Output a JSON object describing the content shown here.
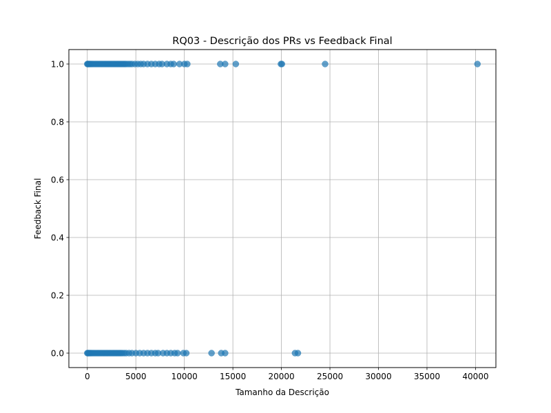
{
  "chart_data": {
    "type": "scatter",
    "title": "RQ03 - Descrição dos PRs vs Feedback Final",
    "xlabel": "Tamanho da Descrição",
    "ylabel": "Feedback Final",
    "xlim": [
      -1900,
      42100
    ],
    "ylim": [
      -0.05,
      1.05
    ],
    "xticks": [
      0,
      5000,
      10000,
      15000,
      20000,
      25000,
      30000,
      35000,
      40000
    ],
    "xtick_labels": [
      "0",
      "5000",
      "10000",
      "15000",
      "20000",
      "25000",
      "30000",
      "35000",
      "40000"
    ],
    "yticks": [
      0.0,
      0.2,
      0.4,
      0.6,
      0.8,
      1.0
    ],
    "ytick_labels": [
      "0.0",
      "0.2",
      "0.4",
      "0.6",
      "0.8",
      "1.0"
    ],
    "grid": true,
    "marker_color": "#1f77b4",
    "marker_alpha": 0.7,
    "series": [
      {
        "values": [
          {
            "x": 0,
            "y": 1
          },
          {
            "x": 50,
            "y": 1
          },
          {
            "x": 120,
            "y": 1
          },
          {
            "x": 200,
            "y": 1
          },
          {
            "x": 300,
            "y": 1
          },
          {
            "x": 420,
            "y": 1
          },
          {
            "x": 550,
            "y": 1
          },
          {
            "x": 700,
            "y": 1
          },
          {
            "x": 850,
            "y": 1
          },
          {
            "x": 1000,
            "y": 1
          },
          {
            "x": 1150,
            "y": 1
          },
          {
            "x": 1300,
            "y": 1
          },
          {
            "x": 1450,
            "y": 1
          },
          {
            "x": 1600,
            "y": 1
          },
          {
            "x": 1750,
            "y": 1
          },
          {
            "x": 1900,
            "y": 1
          },
          {
            "x": 2050,
            "y": 1
          },
          {
            "x": 2200,
            "y": 1
          },
          {
            "x": 2350,
            "y": 1
          },
          {
            "x": 2500,
            "y": 1
          },
          {
            "x": 2650,
            "y": 1
          },
          {
            "x": 2800,
            "y": 1
          },
          {
            "x": 2950,
            "y": 1
          },
          {
            "x": 3100,
            "y": 1
          },
          {
            "x": 3250,
            "y": 1
          },
          {
            "x": 3400,
            "y": 1
          },
          {
            "x": 3550,
            "y": 1
          },
          {
            "x": 3700,
            "y": 1
          },
          {
            "x": 3850,
            "y": 1
          },
          {
            "x": 4000,
            "y": 1
          },
          {
            "x": 4200,
            "y": 1
          },
          {
            "x": 4400,
            "y": 1
          },
          {
            "x": 4600,
            "y": 1
          },
          {
            "x": 4900,
            "y": 1
          },
          {
            "x": 5200,
            "y": 1
          },
          {
            "x": 5500,
            "y": 1
          },
          {
            "x": 5800,
            "y": 1
          },
          {
            "x": 6200,
            "y": 1
          },
          {
            "x": 6600,
            "y": 1
          },
          {
            "x": 7000,
            "y": 1
          },
          {
            "x": 7400,
            "y": 1
          },
          {
            "x": 7700,
            "y": 1
          },
          {
            "x": 8200,
            "y": 1
          },
          {
            "x": 8600,
            "y": 1
          },
          {
            "x": 8900,
            "y": 1
          },
          {
            "x": 9500,
            "y": 1
          },
          {
            "x": 10000,
            "y": 1
          },
          {
            "x": 10300,
            "y": 1
          },
          {
            "x": 13700,
            "y": 1
          },
          {
            "x": 14200,
            "y": 1
          },
          {
            "x": 15300,
            "y": 1
          },
          {
            "x": 19950,
            "y": 1
          },
          {
            "x": 20050,
            "y": 1
          },
          {
            "x": 24500,
            "y": 1
          },
          {
            "x": 40200,
            "y": 1
          },
          {
            "x": 0,
            "y": 0
          },
          {
            "x": 60,
            "y": 0
          },
          {
            "x": 140,
            "y": 0
          },
          {
            "x": 230,
            "y": 0
          },
          {
            "x": 340,
            "y": 0
          },
          {
            "x": 460,
            "y": 0
          },
          {
            "x": 600,
            "y": 0
          },
          {
            "x": 750,
            "y": 0
          },
          {
            "x": 900,
            "y": 0
          },
          {
            "x": 1050,
            "y": 0
          },
          {
            "x": 1200,
            "y": 0
          },
          {
            "x": 1350,
            "y": 0
          },
          {
            "x": 1500,
            "y": 0
          },
          {
            "x": 1650,
            "y": 0
          },
          {
            "x": 1800,
            "y": 0
          },
          {
            "x": 1950,
            "y": 0
          },
          {
            "x": 2100,
            "y": 0
          },
          {
            "x": 2250,
            "y": 0
          },
          {
            "x": 2400,
            "y": 0
          },
          {
            "x": 2550,
            "y": 0
          },
          {
            "x": 2700,
            "y": 0
          },
          {
            "x": 2850,
            "y": 0
          },
          {
            "x": 3000,
            "y": 0
          },
          {
            "x": 3150,
            "y": 0
          },
          {
            "x": 3300,
            "y": 0
          },
          {
            "x": 3450,
            "y": 0
          },
          {
            "x": 3600,
            "y": 0
          },
          {
            "x": 3800,
            "y": 0
          },
          {
            "x": 4000,
            "y": 0
          },
          {
            "x": 4300,
            "y": 0
          },
          {
            "x": 4600,
            "y": 0
          },
          {
            "x": 5000,
            "y": 0
          },
          {
            "x": 5400,
            "y": 0
          },
          {
            "x": 5800,
            "y": 0
          },
          {
            "x": 6200,
            "y": 0
          },
          {
            "x": 6600,
            "y": 0
          },
          {
            "x": 7000,
            "y": 0
          },
          {
            "x": 7300,
            "y": 0
          },
          {
            "x": 7800,
            "y": 0
          },
          {
            "x": 8200,
            "y": 0
          },
          {
            "x": 8600,
            "y": 0
          },
          {
            "x": 9000,
            "y": 0
          },
          {
            "x": 9300,
            "y": 0
          },
          {
            "x": 9900,
            "y": 0
          },
          {
            "x": 10200,
            "y": 0
          },
          {
            "x": 12800,
            "y": 0
          },
          {
            "x": 13800,
            "y": 0
          },
          {
            "x": 14200,
            "y": 0
          },
          {
            "x": 21400,
            "y": 0
          },
          {
            "x": 21700,
            "y": 0
          }
        ]
      }
    ]
  }
}
